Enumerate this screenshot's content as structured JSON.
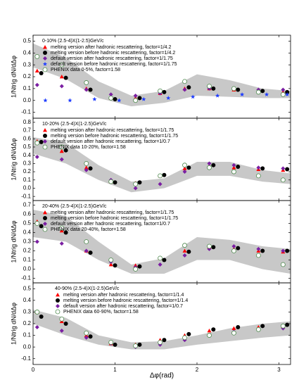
{
  "chart_data": [
    {
      "type": "scatter",
      "title": "0-10% (2.5-4)X(1-2.5)GeV/c",
      "ylabel": "1/Ntrig dN/dΔφ",
      "xlim": [
        0,
        3.1416
      ],
      "xticks": [
        0,
        1,
        2,
        3
      ],
      "ylim": [
        -0.15,
        0.55
      ],
      "yticks": [
        -0.1,
        {
          "value": 0,
          "label": "0.0"
        },
        0.1,
        0.2,
        0.3,
        0.4,
        0.5
      ],
      "band": {
        "color": "#c8c8c8",
        "x": [
          0,
          0.4,
          0.8,
          1.2,
          1.6,
          2.0,
          2.4,
          2.8,
          3.14
        ],
        "lower": [
          0.28,
          0.18,
          0.02,
          -0.05,
          -0.02,
          0.04,
          0.03,
          0.02,
          0.02
        ],
        "upper": [
          0.48,
          0.36,
          0.16,
          0.04,
          0.08,
          0.22,
          0.17,
          0.1,
          0.08
        ]
      },
      "series": [
        {
          "name": "melting version after hadronic rescattering,  factor=1/4.2",
          "color": "#ff0000",
          "marker": "triangle",
          "x": [
            0.05,
            0.35,
            0.65,
            0.95,
            1.25,
            1.55,
            1.85,
            2.15,
            2.45,
            2.75,
            3.05
          ],
          "values": [
            0.25,
            0.2,
            0.1,
            0.02,
            0.02,
            0.06,
            0.1,
            0.1,
            0.09,
            0.08,
            0.07
          ]
        },
        {
          "name": "melting version before hadronic rescattering, factor=1/4.2",
          "color": "#000000",
          "marker": "circle",
          "x": [
            0.1,
            0.4,
            0.7,
            1.0,
            1.3,
            1.6,
            1.9,
            2.2,
            2.5,
            2.8,
            3.1
          ],
          "values": [
            0.23,
            0.19,
            0.09,
            0.01,
            0.02,
            0.07,
            0.11,
            0.1,
            0.09,
            0.08,
            0.07
          ]
        },
        {
          "name": "default version after hadronic rescattering,  factor=1/1.75",
          "color": "#7b1fa2",
          "marker": "diamond",
          "x": [
            0.05,
            0.35,
            0.65,
            0.95,
            1.25,
            1.55,
            1.85,
            2.15,
            2.45,
            2.75,
            3.05
          ],
          "values": [
            0.13,
            0.12,
            0.09,
            0.05,
            0.04,
            0.06,
            0.09,
            0.1,
            0.1,
            0.09,
            0.09
          ]
        },
        {
          "name": "default version before hadronic rescattering,  factor=1/1.75",
          "color": "#1e3cff",
          "marker": "star",
          "x": [
            0.15,
            0.45,
            0.75,
            1.05,
            1.35,
            1.65,
            1.95,
            2.25,
            2.55,
            2.85,
            3.1
          ],
          "values": [
            0.0,
            0.0,
            0.01,
            0.0,
            0.01,
            0.02,
            0.03,
            0.04,
            0.05,
            0.05,
            0.05
          ]
        },
        {
          "name": "PHENIX data 0-5%, factor=1.58",
          "color": "#4f8a4f",
          "marker": "open-circle",
          "x": [
            0.05,
            0.35,
            0.65,
            0.95,
            1.25,
            1.55,
            1.85,
            2.15,
            2.45,
            2.75,
            3.05
          ],
          "values": [
            0.37,
            0.3,
            0.15,
            0.02,
            0.0,
            0.08,
            0.16,
            0.12,
            0.1,
            0.07,
            0.05
          ]
        }
      ]
    },
    {
      "type": "scatter",
      "title": "10-20% (2.5-4)X(1-2.5)GeV/c",
      "ylabel": "1/Ntrig dN/dΔφ",
      "xlim": [
        0,
        3.1416
      ],
      "xticks": [
        0,
        1,
        2,
        3
      ],
      "ylim": [
        -0.15,
        0.85
      ],
      "yticks": [
        -0.1,
        {
          "value": 0,
          "label": "0.0"
        },
        0.1,
        0.2,
        0.3,
        0.4,
        0.5,
        0.6,
        0.7,
        0.8
      ],
      "band": {
        "color": "#c8c8c8",
        "x": [
          0,
          0.4,
          0.8,
          1.2,
          1.6,
          2.0,
          2.4,
          2.8,
          3.14
        ],
        "lower": [
          0.42,
          0.3,
          0.1,
          -0.05,
          0.0,
          0.15,
          0.15,
          0.08,
          0.05
        ],
        "upper": [
          0.62,
          0.55,
          0.28,
          0.08,
          0.12,
          0.32,
          0.32,
          0.22,
          0.18
        ]
      },
      "series": [
        {
          "name": "melting version after hadronic rescattering,  factor=1/1.75",
          "color": "#ff0000",
          "marker": "triangle",
          "x": [
            0.05,
            0.35,
            0.65,
            0.95,
            1.25,
            1.55,
            1.85,
            2.15,
            2.45,
            2.75,
            3.05
          ],
          "values": [
            0.57,
            0.45,
            0.25,
            0.08,
            0.06,
            0.15,
            0.24,
            0.27,
            0.25,
            0.23,
            0.22
          ]
        },
        {
          "name": "melting version before hadronic rescattering, factor=1/1.75",
          "color": "#000000",
          "marker": "circle",
          "x": [
            0.1,
            0.4,
            0.7,
            1.0,
            1.3,
            1.6,
            1.9,
            2.2,
            2.5,
            2.8,
            3.1
          ],
          "values": [
            0.56,
            0.46,
            0.24,
            0.07,
            0.07,
            0.16,
            0.25,
            0.28,
            0.26,
            0.24,
            0.23
          ]
        },
        {
          "name": "default version after hadronic rescattering,  factor=1/0.7",
          "color": "#7b1fa2",
          "marker": "diamond",
          "x": [
            0.05,
            0.35,
            0.65,
            0.95,
            1.25,
            1.55,
            1.85,
            2.15,
            2.45,
            2.75,
            3.05
          ],
          "values": [
            0.38,
            0.35,
            0.22,
            0.1,
            0.0,
            0.05,
            0.2,
            0.3,
            0.28,
            0.25,
            0.24
          ]
        },
        {
          "name": "PHENIX data 10-20%,  factor=1.58",
          "color": "#4f8a4f",
          "marker": "open-circle",
          "x": [
            0.05,
            0.35,
            0.65,
            0.95,
            1.25,
            1.55,
            1.85,
            2.15,
            2.45,
            2.75,
            3.05
          ],
          "values": [
            0.55,
            0.5,
            0.3,
            0.08,
            0.05,
            0.15,
            0.28,
            0.25,
            0.2,
            0.15,
            0.1
          ]
        }
      ]
    },
    {
      "type": "scatter",
      "title": "20-40% (2.5-4)X(1-2.5)GeV/c",
      "ylabel": "1/Ntrig dN/dΔφ",
      "xlim": [
        0,
        3.1416
      ],
      "xticks": [
        0,
        1,
        2,
        3
      ],
      "ylim": [
        -0.15,
        0.75
      ],
      "yticks": [
        -0.1,
        {
          "value": 0,
          "label": "0.0"
        },
        0.1,
        0.2,
        0.3,
        0.4,
        0.5,
        0.6,
        0.7
      ],
      "band": {
        "color": "#c8c8c8",
        "x": [
          0,
          0.4,
          0.8,
          1.2,
          1.6,
          2.0,
          2.4,
          2.8,
          3.14
        ],
        "lower": [
          0.35,
          0.3,
          0.1,
          -0.05,
          -0.05,
          0.1,
          0.1,
          0.0,
          -0.05
        ],
        "upper": [
          0.65,
          0.58,
          0.3,
          0.05,
          0.12,
          0.35,
          0.32,
          0.25,
          0.22
        ]
      },
      "series": [
        {
          "name": "melting version after hadronic rescattering,  factor=1/1.75",
          "color": "#ff0000",
          "marker": "triangle",
          "x": [
            0.05,
            0.35,
            0.65,
            0.95,
            1.25,
            1.55,
            1.85,
            2.15,
            2.45,
            2.75,
            3.05
          ],
          "values": [
            0.52,
            0.42,
            0.2,
            0.05,
            0.04,
            0.12,
            0.2,
            0.24,
            0.22,
            0.2,
            0.19
          ]
        },
        {
          "name": "melting version before hadronic rescattering, factor=1/1.75",
          "color": "#000000",
          "marker": "circle",
          "x": [
            0.1,
            0.4,
            0.7,
            1.0,
            1.3,
            1.6,
            1.9,
            2.2,
            2.5,
            2.8,
            3.1
          ],
          "values": [
            0.47,
            0.4,
            0.18,
            0.04,
            0.03,
            0.1,
            0.19,
            0.24,
            0.23,
            0.2,
            0.2
          ]
        },
        {
          "name": "default version after hadronic rescattering,  factor=1/0.7",
          "color": "#7b1fa2",
          "marker": "diamond",
          "x": [
            0.05,
            0.35,
            0.65,
            0.95,
            1.25,
            1.55,
            1.85,
            2.15,
            2.45,
            2.75,
            3.05
          ],
          "values": [
            0.3,
            0.28,
            0.2,
            0.08,
            0.02,
            0.05,
            0.15,
            0.22,
            0.25,
            0.22,
            0.2
          ]
        },
        {
          "name": "PHENIX data 20-40%,  factor=1.58",
          "color": "#4f8a4f",
          "marker": "open-circle",
          "x": [
            0.05,
            0.35,
            0.65,
            0.95,
            1.25,
            1.55,
            1.85,
            2.15,
            2.45,
            2.75,
            3.05
          ],
          "values": [
            0.5,
            0.45,
            0.3,
            0.1,
            0.0,
            0.12,
            0.26,
            0.25,
            0.2,
            0.15,
            0.05
          ]
        }
      ]
    },
    {
      "type": "scatter",
      "title": "40-90% (2.5-4)X(1-2.5)GeV/c",
      "ylabel": "1/Ntrig dN/dΔφ",
      "xlabel": "Δφ(rad)",
      "xlim": [
        0,
        3.1416
      ],
      "xticks": [
        0,
        1,
        2,
        3
      ],
      "ylim": [
        -0.15,
        0.55
      ],
      "yticks": [
        -0.1,
        {
          "value": 0,
          "label": "0.0"
        },
        0.1,
        0.2,
        0.3,
        0.4,
        0.5
      ],
      "band": {
        "color": "#c8c8c8",
        "x": [
          0,
          0.4,
          0.8,
          1.2,
          1.6,
          2.0,
          2.4,
          2.8,
          3.14
        ],
        "lower": [
          0.2,
          0.1,
          0.02,
          -0.02,
          -0.02,
          0.02,
          0.05,
          0.08,
          0.1
        ],
        "upper": [
          0.32,
          0.25,
          0.1,
          0.04,
          0.05,
          0.1,
          0.16,
          0.2,
          0.22
        ]
      },
      "series": [
        {
          "name": "melting version after hadronic rescattering,  factor=1/1.4",
          "color": "#ff0000",
          "marker": "triangle",
          "x": [
            0.05,
            0.35,
            0.65,
            0.95,
            1.25,
            1.55,
            1.85,
            2.15,
            2.45,
            2.75,
            3.05
          ],
          "values": [
            0.3,
            0.22,
            0.1,
            0.03,
            0.02,
            0.06,
            0.1,
            0.14,
            0.16,
            0.17,
            0.18
          ]
        },
        {
          "name": "melting version before hadronic rescattering, factor=1/1.4",
          "color": "#000000",
          "marker": "circle",
          "x": [
            0.1,
            0.4,
            0.7,
            1.0,
            1.3,
            1.6,
            1.9,
            2.2,
            2.5,
            2.8,
            3.1
          ],
          "values": [
            0.26,
            0.2,
            0.09,
            0.02,
            0.02,
            0.06,
            0.11,
            0.15,
            0.17,
            0.18,
            0.19
          ]
        },
        {
          "name": "default version after hadronic rescattering,  factor=1/0.7",
          "color": "#7b1fa2",
          "marker": "diamond",
          "x": [
            0.05,
            0.35,
            0.65,
            0.95,
            1.25,
            1.55,
            1.85,
            2.15,
            2.45,
            2.75,
            3.05
          ],
          "values": [
            0.17,
            0.14,
            0.08,
            0.03,
            0.0,
            0.02,
            0.06,
            0.1,
            0.13,
            0.15,
            0.16
          ]
        },
        {
          "name": "PHENIX data 60-90%,  factor=1.58",
          "color": "#4f8a4f",
          "marker": "open-circle",
          "x": [
            0.05,
            0.35,
            0.65,
            0.95,
            1.25,
            1.55,
            1.85,
            2.15,
            2.45,
            2.75,
            3.05
          ],
          "values": [
            0.3,
            0.24,
            0.12,
            0.04,
            0.01,
            0.04,
            0.08,
            0.1,
            0.12,
            0.15,
            0.18
          ]
        }
      ]
    }
  ]
}
